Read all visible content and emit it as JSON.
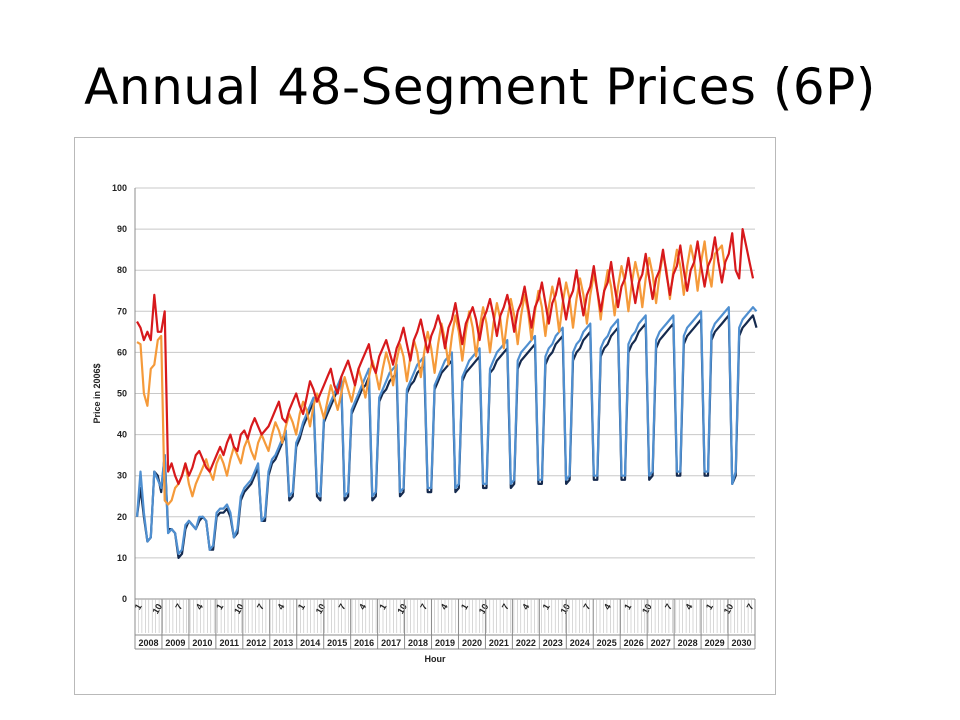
{
  "slide": {
    "title": "Annual 48-Segment Prices (6P)"
  },
  "chart_data": {
    "type": "line",
    "title": "",
    "xlabel": "Hour",
    "ylabel": "Price in 2006$",
    "ylim": [
      0,
      100
    ],
    "yticks": [
      0,
      10,
      20,
      30,
      40,
      50,
      60,
      70,
      80,
      90,
      100
    ],
    "grid": true,
    "legend": "none",
    "years": [
      "2008",
      "2009",
      "2010",
      "2011",
      "2012",
      "2013",
      "2014",
      "2015",
      "2016",
      "2017",
      "2018",
      "2019",
      "2020",
      "2021",
      "2022",
      "2023",
      "2024",
      "2025",
      "2026",
      "2027",
      "2028",
      "2029",
      "2030"
    ],
    "month_tick_labels": [
      "1",
      "10",
      "7",
      "4",
      "1",
      "10",
      "7",
      "4",
      "1",
      "10",
      "7",
      "4",
      "1",
      "10",
      "7",
      "4",
      "1",
      "10",
      "7",
      "4",
      "1",
      "10",
      "7",
      "4",
      "1",
      "10",
      "7",
      "4",
      "1",
      "10",
      "7"
    ],
    "colors": {
      "red": "#d7191c",
      "orange": "#f59a3a",
      "navy": "#152a4e",
      "blue": "#4f8fd0"
    },
    "series": [
      {
        "color": "red",
        "values": [
          67.5,
          66,
          63,
          65,
          63,
          74,
          65,
          65,
          70,
          31,
          33,
          30,
          28,
          30,
          33,
          30,
          32,
          35,
          36,
          34,
          32,
          31,
          33,
          35,
          37,
          35,
          38,
          40,
          37,
          36,
          40,
          41,
          39,
          42,
          44,
          42,
          40,
          41,
          42,
          44,
          46,
          48,
          44,
          43,
          46,
          48,
          50,
          47,
          45,
          49,
          53,
          51,
          48,
          50,
          52,
          54,
          56,
          52,
          50,
          54,
          56,
          58,
          55,
          52,
          56,
          58,
          60,
          62,
          57,
          55,
          59,
          61,
          63,
          60,
          57,
          61,
          63,
          66,
          62,
          58,
          63,
          65,
          68,
          64,
          60,
          64,
          66,
          69,
          66,
          61,
          66,
          68,
          72,
          67,
          62,
          67,
          69,
          71,
          68,
          63,
          68,
          70,
          73,
          69,
          64,
          69,
          71,
          74,
          70,
          65,
          70,
          72,
          76,
          71,
          66,
          71,
          73,
          77,
          72,
          67,
          72,
          74,
          78,
          73,
          68,
          73,
          75,
          80,
          74,
          69,
          74,
          76,
          81,
          75,
          70,
          75,
          77,
          82,
          76,
          71,
          76,
          78,
          83,
          77,
          72,
          77,
          79,
          84,
          78,
          73,
          78,
          80,
          85,
          79,
          74,
          79,
          81,
          86,
          80,
          75,
          80,
          82,
          87,
          81,
          76,
          81,
          83,
          88,
          82,
          77,
          82,
          84,
          89,
          80,
          78,
          90,
          86,
          82,
          78
        ]
      },
      {
        "color": "orange",
        "values": [
          62.5,
          62,
          50,
          47,
          56,
          57,
          63,
          64,
          24,
          23,
          24,
          27,
          28,
          30,
          33,
          28,
          25,
          28,
          30,
          32,
          34,
          31,
          29,
          33,
          35,
          33,
          30,
          34,
          37,
          35,
          33,
          37,
          39,
          36,
          34,
          38,
          40,
          38,
          36,
          40,
          43,
          41,
          38,
          42,
          45,
          43,
          40,
          45,
          48,
          46,
          42,
          47,
          50,
          47,
          44,
          48,
          52,
          49,
          46,
          50,
          54,
          51,
          48,
          52,
          56,
          53,
          49,
          54,
          58,
          55,
          51,
          56,
          60,
          57,
          52,
          58,
          62,
          59,
          53,
          59,
          63,
          60,
          54,
          60,
          65,
          61,
          55,
          62,
          67,
          63,
          57,
          64,
          69,
          65,
          58,
          65,
          70,
          66,
          59,
          66,
          71,
          67,
          60,
          67,
          72,
          68,
          61,
          68,
          73,
          69,
          62,
          69,
          74,
          70,
          63,
          70,
          75,
          71,
          64,
          71,
          76,
          72,
          65,
          72,
          77,
          73,
          66,
          73,
          78,
          74,
          67,
          74,
          79,
          75,
          68,
          75,
          80,
          76,
          69,
          76,
          81,
          77,
          70,
          77,
          82,
          78,
          71,
          78,
          83,
          79,
          72,
          79,
          84,
          80,
          73,
          80,
          85,
          81,
          74,
          81,
          86,
          82,
          75,
          82,
          87,
          80,
          76,
          84,
          85,
          86,
          80
        ]
      },
      {
        "color": "navy",
        "values": [
          20,
          27,
          20,
          14,
          15,
          31,
          30,
          26,
          35,
          17,
          17,
          16,
          10,
          11,
          17,
          19,
          18,
          17,
          19,
          20,
          19,
          12,
          12,
          20,
          21,
          21,
          22,
          20,
          15,
          16,
          24,
          26,
          27,
          28,
          30,
          32,
          19,
          19,
          30,
          33,
          34,
          36,
          38,
          40,
          24,
          25,
          37,
          39,
          42,
          44,
          46,
          48,
          25,
          24,
          43,
          45,
          47,
          49,
          51,
          53,
          24,
          25,
          45,
          47,
          49,
          51,
          52,
          54,
          24,
          25,
          48,
          50,
          51,
          53,
          54,
          55,
          25,
          26,
          50,
          52,
          53,
          55,
          56,
          57,
          26,
          26,
          51,
          53,
          55,
          56,
          57,
          58,
          26,
          27,
          53,
          55,
          56,
          57,
          58,
          59,
          27,
          27,
          55,
          56,
          58,
          59,
          60,
          61,
          27,
          28,
          56,
          58,
          59,
          60,
          61,
          62,
          28,
          28,
          57,
          59,
          60,
          62,
          63,
          64,
          28,
          29,
          58,
          60,
          61,
          63,
          64,
          65,
          29,
          29,
          59,
          61,
          62,
          64,
          65,
          66,
          29,
          29,
          60,
          62,
          63,
          65,
          66,
          67,
          29,
          30,
          61,
          63,
          64,
          65,
          66,
          67,
          30,
          30,
          62,
          64,
          65,
          66,
          67,
          68,
          30,
          30,
          63,
          65,
          66,
          67,
          68,
          69,
          28,
          30,
          64,
          66,
          67,
          68,
          69,
          66
        ]
      },
      {
        "color": "blue",
        "values": [
          20,
          31,
          21,
          14,
          15,
          31,
          29,
          27,
          35,
          16,
          17,
          16,
          11,
          12,
          18,
          19,
          18,
          17,
          20,
          20,
          19,
          12,
          13,
          21,
          22,
          22,
          23,
          21,
          15,
          17,
          25,
          27,
          28,
          29,
          31,
          33,
          19,
          20,
          31,
          34,
          35,
          37,
          39,
          41,
          25,
          26,
          38,
          40,
          43,
          45,
          47,
          49,
          26,
          25,
          44,
          46,
          48,
          50,
          52,
          54,
          25,
          26,
          46,
          48,
          50,
          52,
          54,
          56,
          25,
          26,
          49,
          51,
          53,
          55,
          56,
          57,
          26,
          27,
          51,
          53,
          55,
          57,
          58,
          59,
          27,
          27,
          52,
          54,
          56,
          58,
          59,
          60,
          27,
          28,
          54,
          56,
          58,
          59,
          60,
          61,
          28,
          28,
          56,
          58,
          60,
          61,
          62,
          63,
          28,
          29,
          58,
          60,
          61,
          62,
          63,
          64,
          29,
          29,
          59,
          61,
          62,
          64,
          65,
          66,
          29,
          30,
          60,
          62,
          63,
          65,
          66,
          67,
          30,
          30,
          61,
          63,
          64,
          66,
          67,
          68,
          30,
          30,
          62,
          64,
          65,
          67,
          68,
          69,
          30,
          31,
          63,
          65,
          66,
          67,
          68,
          69,
          31,
          31,
          64,
          66,
          67,
          68,
          69,
          70,
          31,
          31,
          65,
          67,
          68,
          69,
          70,
          71,
          28,
          31,
          66,
          68,
          69,
          70,
          71,
          70
        ]
      }
    ]
  }
}
